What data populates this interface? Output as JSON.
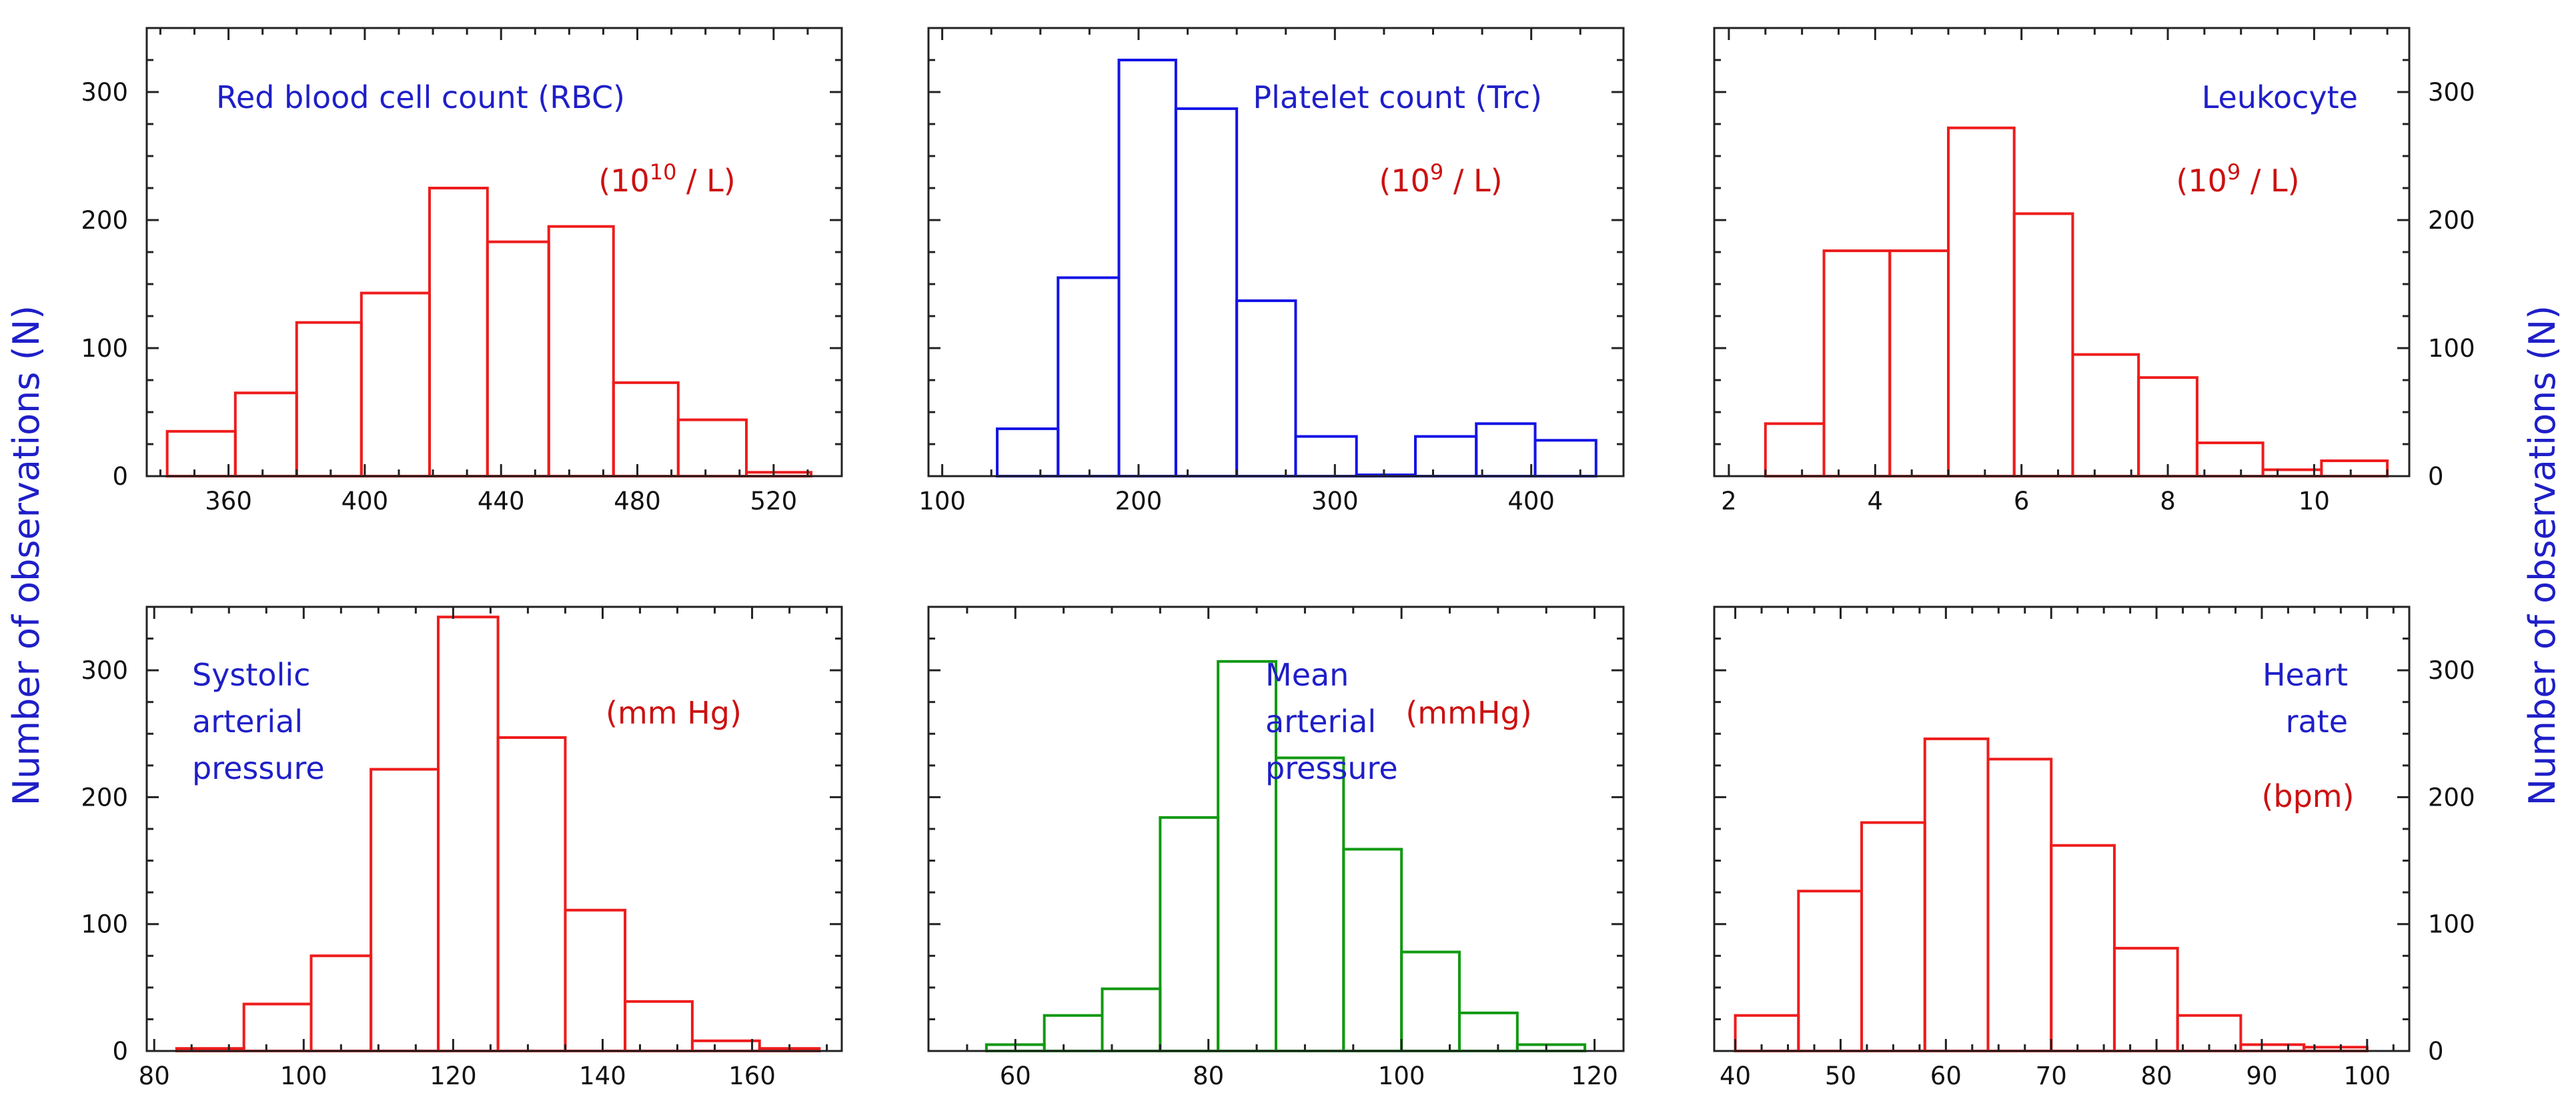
{
  "figure": {
    "ylabel_left": "Number of observations (N)",
    "ylabel_right": "Number of observations (N)",
    "colors": {
      "axis_title": "#1f1fc8",
      "panel_title": "#1f1fc8",
      "unit": "#cc1111",
      "red": "#ee1c1c",
      "blue": "#1414e6",
      "green": "#119911"
    }
  },
  "chart_data": [
    {
      "type": "bar",
      "histogram": true,
      "title_lines": [
        "Red blood cell count (RBC)"
      ],
      "unit": {
        "prefix": "(10",
        "sup": "10",
        "suffix": " / L)"
      },
      "color": "#ee1c1c",
      "xlim": [
        336,
        540
      ],
      "ylim": [
        0,
        350
      ],
      "xticks": [
        360,
        400,
        440,
        480,
        520
      ],
      "yticks": [
        0,
        100,
        200,
        300
      ],
      "bins": [
        [
          342,
          362
        ],
        [
          362,
          380
        ],
        [
          380,
          399
        ],
        [
          399,
          419
        ],
        [
          419,
          436
        ],
        [
          436,
          454
        ],
        [
          454,
          473
        ],
        [
          473,
          492
        ],
        [
          492,
          512
        ],
        [
          512,
          531
        ]
      ],
      "values": [
        35,
        65,
        120,
        143,
        225,
        183,
        195,
        73,
        44,
        3
      ],
      "ylabels": "left"
    },
    {
      "type": "bar",
      "histogram": true,
      "title_lines": [
        "Platelet count (Trc)"
      ],
      "unit": {
        "prefix": "(10",
        "sup": "9",
        "suffix": " / L)"
      },
      "color": "#1414e6",
      "xlim": [
        93,
        447
      ],
      "ylim": [
        0,
        350
      ],
      "xticks": [
        100,
        200,
        300,
        400
      ],
      "yticks": [
        0,
        100,
        200,
        300
      ],
      "bins": [
        [
          128,
          159
        ],
        [
          159,
          190
        ],
        [
          190,
          219
        ],
        [
          219,
          250
        ],
        [
          250,
          280
        ],
        [
          280,
          311
        ],
        [
          311,
          341
        ],
        [
          341,
          372
        ],
        [
          372,
          402
        ],
        [
          402,
          433
        ]
      ],
      "values": [
        37,
        155,
        325,
        287,
        137,
        31,
        1,
        31,
        41,
        28
      ],
      "ylabels": "none"
    },
    {
      "type": "bar",
      "histogram": true,
      "title_lines": [
        "Leukocyte"
      ],
      "unit": {
        "prefix": "(10",
        "sup": "9",
        "suffix": " / L)"
      },
      "color": "#ee1c1c",
      "xlim": [
        1.8,
        11.3
      ],
      "ylim": [
        0,
        350
      ],
      "xticks": [
        2,
        4,
        6,
        8,
        10
      ],
      "yticks": [
        0,
        100,
        200,
        300
      ],
      "bins": [
        [
          2.0,
          2.5
        ],
        [
          2.5,
          3.3
        ],
        [
          3.3,
          4.2
        ],
        [
          4.2,
          5.0
        ],
        [
          5.0,
          5.9
        ],
        [
          5.9,
          6.7
        ],
        [
          6.7,
          7.6
        ],
        [
          7.6,
          8.4
        ],
        [
          8.4,
          9.3
        ],
        [
          9.3,
          10.1
        ],
        [
          10.1,
          11.0
        ]
      ],
      "values": [
        0,
        41,
        176,
        176,
        272,
        205,
        95,
        77,
        26,
        5,
        12
      ],
      "ylabels": "right"
    },
    {
      "type": "bar",
      "histogram": true,
      "title_lines": [
        "Systolic",
        "arterial",
        "pressure"
      ],
      "unit": {
        "prefix": "(mm Hg)",
        "sup": "",
        "suffix": ""
      },
      "color": "#ee1c1c",
      "xlim": [
        79,
        172
      ],
      "ylim": [
        0,
        350
      ],
      "xticks": [
        80,
        100,
        120,
        140,
        160
      ],
      "yticks": [
        0,
        100,
        200,
        300
      ],
      "bins": [
        [
          83,
          92
        ],
        [
          92,
          101
        ],
        [
          101,
          109
        ],
        [
          109,
          118
        ],
        [
          118,
          126
        ],
        [
          126,
          135
        ],
        [
          135,
          143
        ],
        [
          143,
          152
        ],
        [
          152,
          161
        ],
        [
          161,
          169
        ]
      ],
      "values": [
        2,
        37,
        75,
        222,
        342,
        247,
        111,
        39,
        8,
        2
      ],
      "ylabels": "left"
    },
    {
      "type": "bar",
      "histogram": true,
      "title_lines": [
        "Mean",
        "arterial",
        "pressure"
      ],
      "unit": {
        "prefix": "(mmHg)",
        "sup": "",
        "suffix": ""
      },
      "color": "#119911",
      "xlim": [
        51,
        123
      ],
      "ylim": [
        0,
        350
      ],
      "xticks": [
        60,
        80,
        100,
        120
      ],
      "yticks": [
        0,
        100,
        200,
        300
      ],
      "bins": [
        [
          57,
          63
        ],
        [
          63,
          69
        ],
        [
          69,
          75
        ],
        [
          75,
          81
        ],
        [
          81,
          87
        ],
        [
          87,
          94
        ],
        [
          94,
          100
        ],
        [
          100,
          106
        ],
        [
          106,
          112
        ],
        [
          112,
          119
        ]
      ],
      "values": [
        5,
        28,
        49,
        184,
        307,
        231,
        159,
        78,
        30,
        5
      ],
      "ylabels": "none"
    },
    {
      "type": "bar",
      "histogram": true,
      "title_lines": [
        "Heart",
        "rate"
      ],
      "unit": {
        "prefix": "(bpm)",
        "sup": "",
        "suffix": ""
      },
      "color": "#ee1c1c",
      "xlim": [
        38,
        104
      ],
      "ylim": [
        0,
        350
      ],
      "xticks": [
        40,
        50,
        60,
        70,
        80,
        90,
        100
      ],
      "yticks": [
        0,
        100,
        200,
        300
      ],
      "bins": [
        [
          40,
          46
        ],
        [
          46,
          52
        ],
        [
          52,
          58
        ],
        [
          58,
          64
        ],
        [
          64,
          70
        ],
        [
          70,
          76
        ],
        [
          76,
          82
        ],
        [
          82,
          88
        ],
        [
          88,
          94
        ],
        [
          94,
          100
        ]
      ],
      "values": [
        28,
        126,
        180,
        246,
        230,
        162,
        81,
        28,
        5,
        3
      ],
      "ylabels": "right"
    }
  ]
}
